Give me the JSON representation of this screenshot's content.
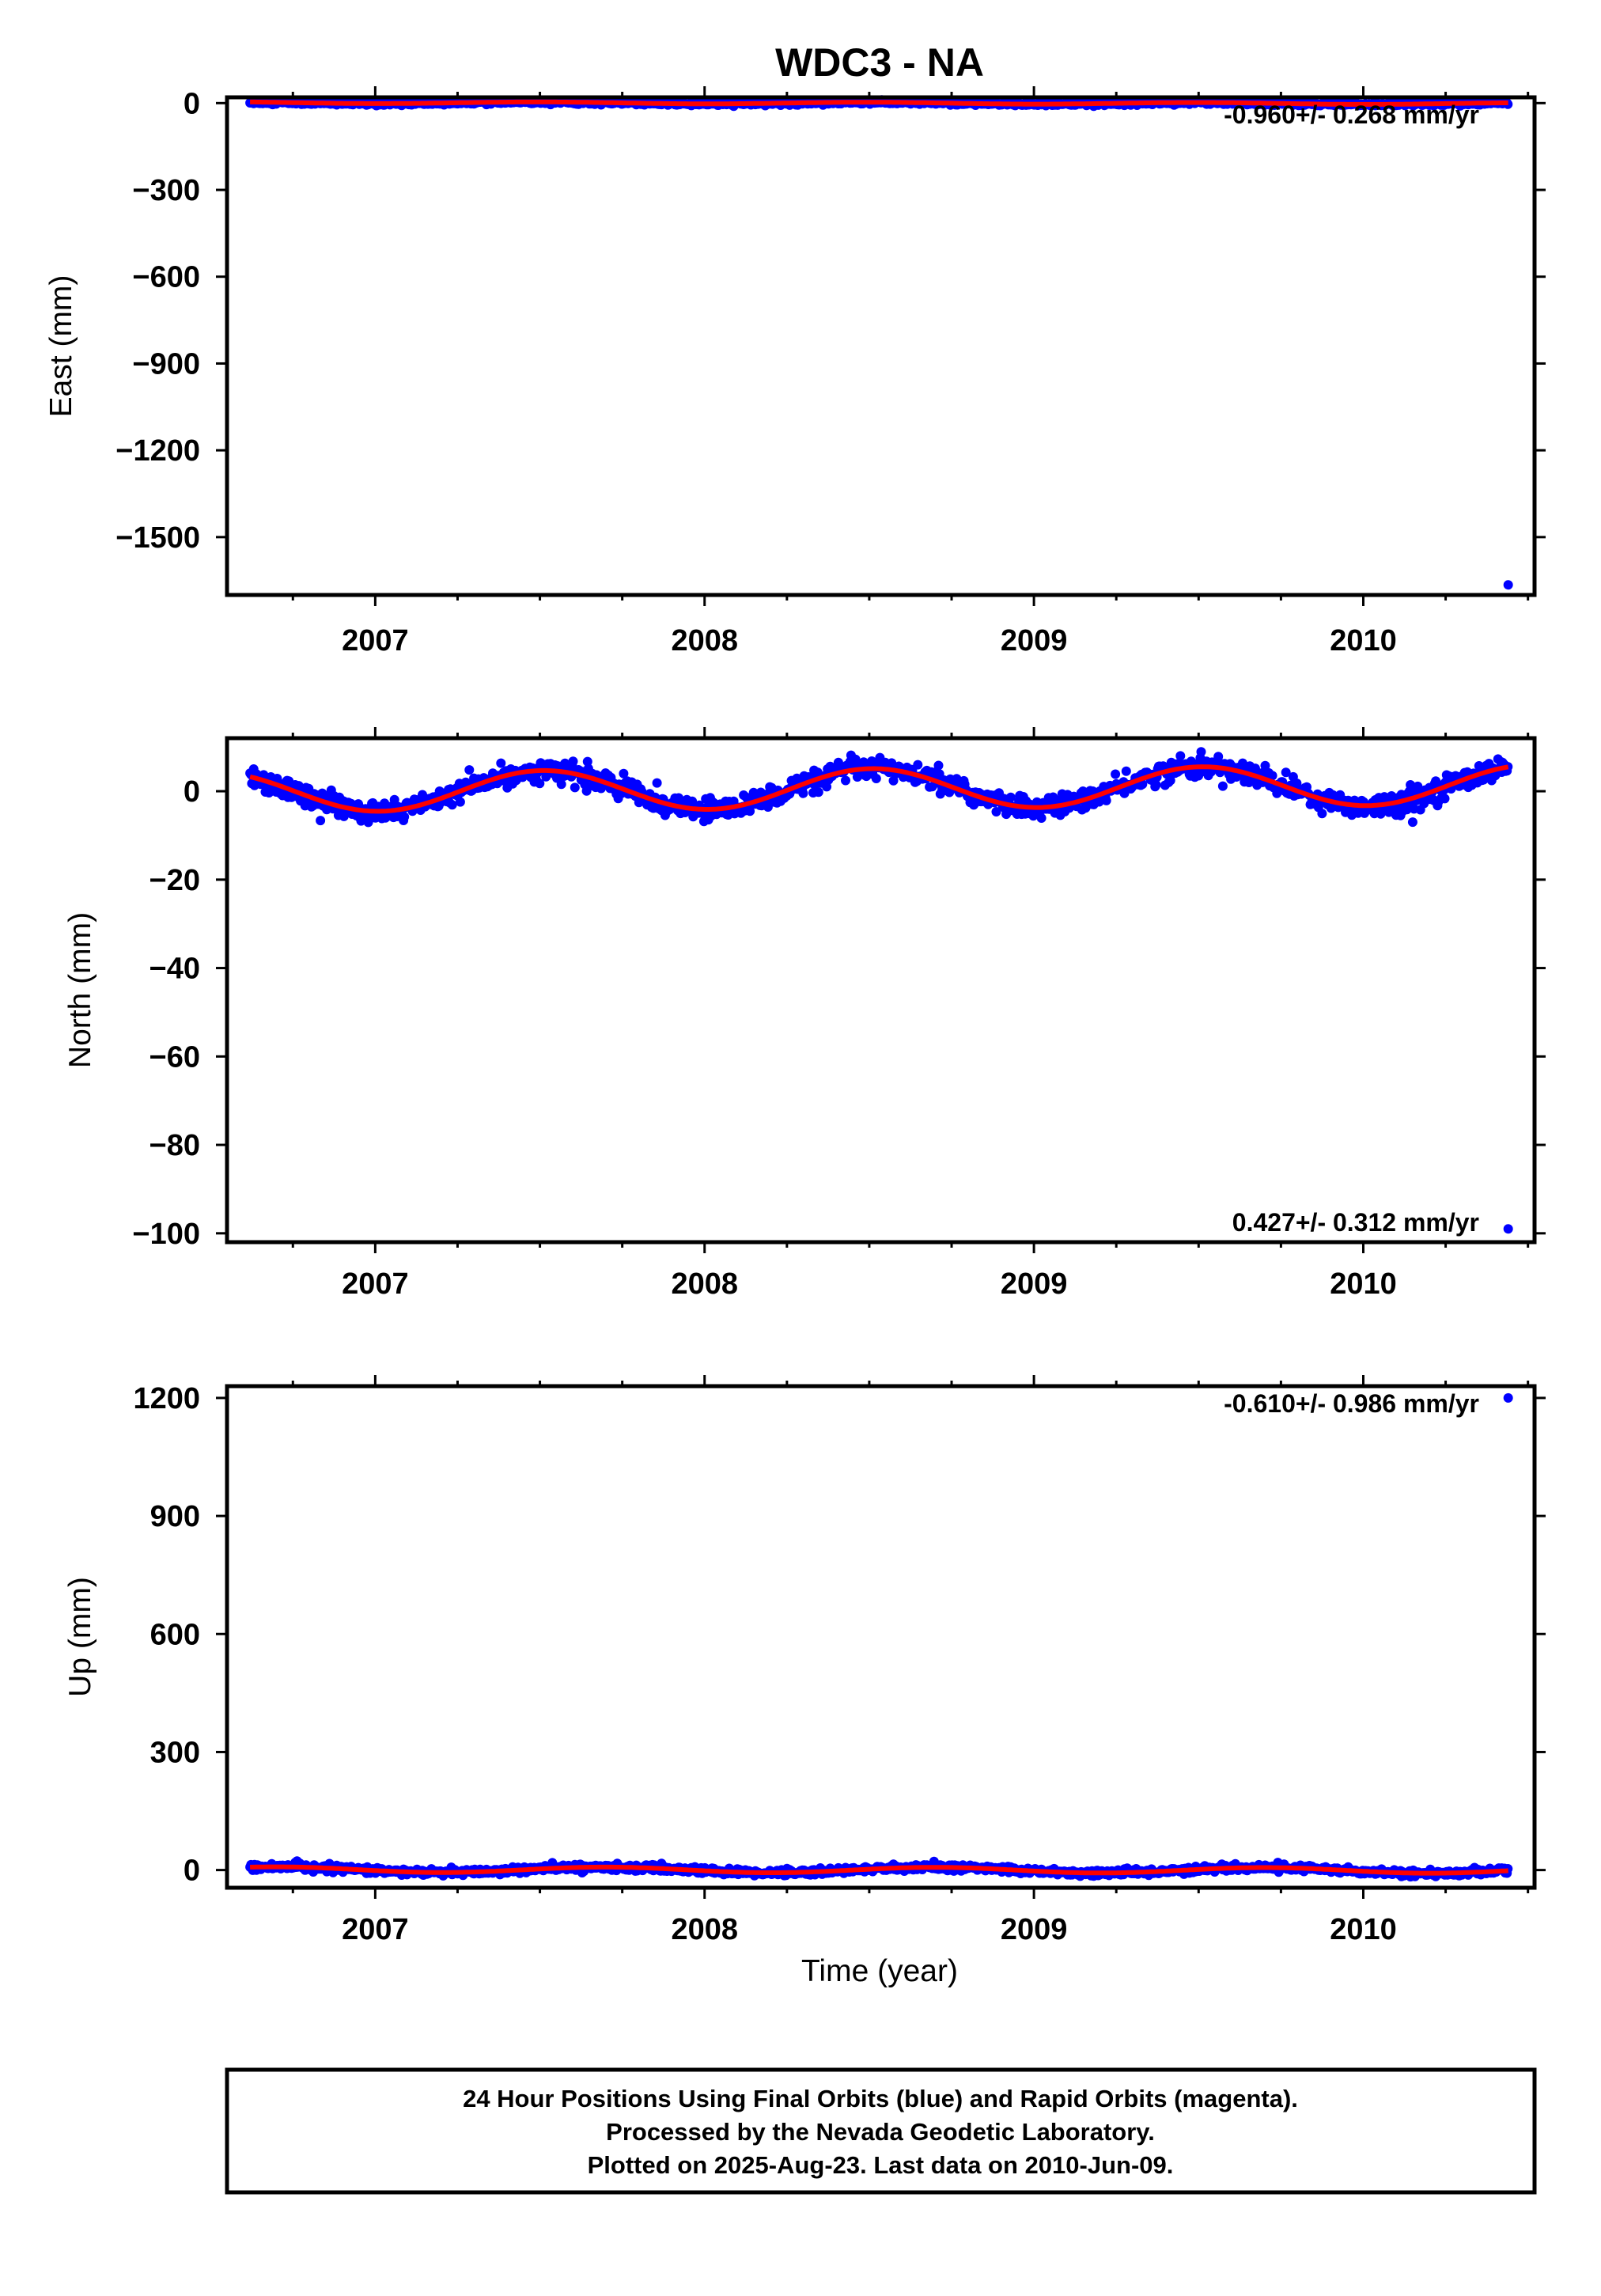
{
  "title": "WDC3 - NA",
  "x_label": "Time (year)",
  "x_ticks": [
    2007,
    2008,
    2009,
    2010
  ],
  "footer": [
    "24 Hour Positions Using Final Orbits (blue) and Rapid Orbits (magenta).",
    "Processed by the Nevada Geodetic Laboratory.",
    "Plotted on 2025-Aug-23. Last data on 2010-Jun-09."
  ],
  "colors": {
    "final_orbits": "#0000ff",
    "model_fit": "#ff0000",
    "frame": "#000000"
  },
  "chart_data": [
    {
      "type": "scatter",
      "ylabel": "East (mm)",
      "xlim": [
        2006.55,
        2010.52
      ],
      "ylim": [
        -1700,
        20
      ],
      "yticks": [
        0,
        -300,
        -600,
        -900,
        -1200,
        -1500
      ],
      "rate_label": "-0.960+/- 0.268 mm/yr",
      "rate_position": "top-right",
      "data_start": 2006.62,
      "data_end": 2010.44,
      "model": {
        "offset": 0,
        "rate": -0.96,
        "annual_amplitude": 3,
        "annual_peak": 2007.5
      },
      "scatter_sd": 3,
      "outliers": [
        {
          "x": 2010.44,
          "y": -1665
        }
      ]
    },
    {
      "type": "scatter",
      "ylabel": "North (mm)",
      "xlim": [
        2006.55,
        2010.52
      ],
      "ylim": [
        -102,
        12
      ],
      "yticks": [
        0,
        -20,
        -40,
        -60,
        -80,
        -100
      ],
      "rate_label": "0.427+/- 0.312 mm/yr",
      "rate_position": "bottom-right",
      "data_start": 2006.62,
      "data_end": 2010.44,
      "model": {
        "offset": 0.6,
        "rate": 0.427,
        "annual_amplitude": 4.5,
        "annual_peak": 2007.51
      },
      "scatter_sd": 1.2,
      "outliers": [
        {
          "x": 2010.44,
          "y": -99
        },
        {
          "x": 2010.15,
          "y": -7
        }
      ]
    },
    {
      "type": "scatter",
      "ylabel": "Up (mm)",
      "xlim": [
        2006.55,
        2010.52
      ],
      "ylim": [
        -45,
        1230
      ],
      "yticks": [
        1200,
        900,
        600,
        300,
        0
      ],
      "rate_label": "-0.610+/- 0.986 mm/yr",
      "rate_position": "top-right",
      "data_start": 2006.62,
      "data_end": 2010.44,
      "model": {
        "offset": 0,
        "rate": -0.61,
        "annual_amplitude": 7,
        "annual_peak": 2007.7
      },
      "scatter_sd": 4,
      "outliers": [
        {
          "x": 2010.44,
          "y": 1200
        }
      ]
    }
  ]
}
